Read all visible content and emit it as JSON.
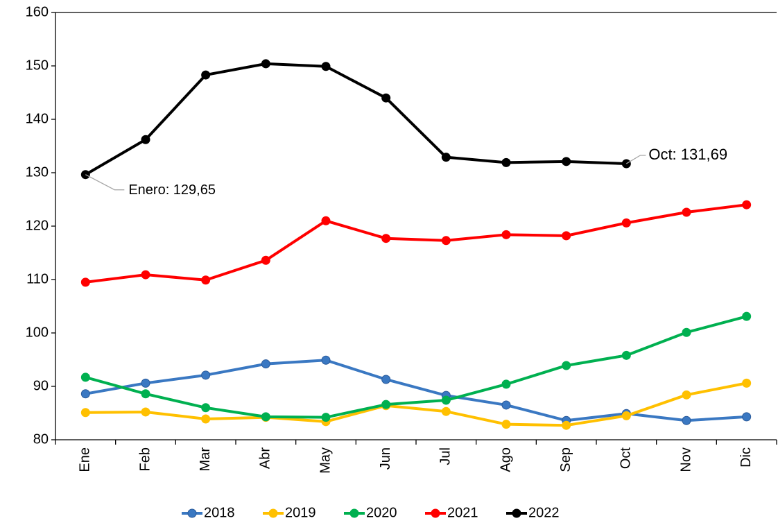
{
  "chart_data": {
    "type": "line",
    "categories": [
      "Ene",
      "Feb",
      "Mar",
      "Abr",
      "May",
      "Jun",
      "Jul",
      "Ago",
      "Sep",
      "Oct",
      "Nov",
      "Dic"
    ],
    "series": [
      {
        "name": "2018",
        "color": "#3a78c2",
        "values": [
          88.6,
          90.6,
          92.1,
          94.2,
          94.9,
          91.3,
          88.3,
          86.5,
          83.6,
          84.9,
          83.6,
          84.3
        ]
      },
      {
        "name": "2019",
        "color": "#ffc000",
        "values": [
          85.1,
          85.2,
          83.9,
          84.2,
          83.4,
          86.4,
          85.3,
          82.9,
          82.7,
          84.5,
          88.4,
          90.6
        ]
      },
      {
        "name": "2020",
        "color": "#00b050",
        "values": [
          91.7,
          88.6,
          86.0,
          84.3,
          84.2,
          86.6,
          87.4,
          90.4,
          93.9,
          95.8,
          100.1,
          103.1
        ]
      },
      {
        "name": "2021",
        "color": "#ff0000",
        "values": [
          109.5,
          110.9,
          109.9,
          113.6,
          121.0,
          117.7,
          117.3,
          118.4,
          118.2,
          120.6,
          122.6,
          124.0
        ]
      },
      {
        "name": "2022",
        "color": "#000000",
        "values": [
          129.65,
          136.2,
          148.3,
          150.4,
          149.9,
          144.0,
          132.9,
          131.9,
          132.1,
          131.69,
          null,
          null
        ]
      }
    ],
    "annotations": [
      "Enero: 129,65",
      "Oct: 131,69"
    ],
    "ylim": [
      80,
      160
    ],
    "yticks": [
      80,
      90,
      100,
      110,
      120,
      130,
      140,
      150,
      160
    ],
    "grid": false,
    "legend": "bottom"
  }
}
